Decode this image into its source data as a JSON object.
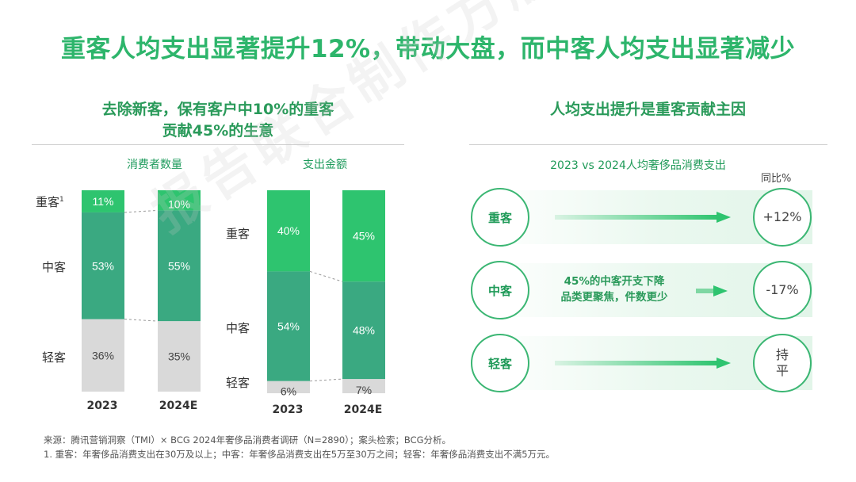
{
  "title": "重客人均支出显著提升12%，带动大盘，而中客人均支出显著减少",
  "left_section": {
    "heading_line1": "去除新客，保有客户中10%的重客",
    "heading_line2": "贡献45%的生意"
  },
  "right_section": {
    "heading": "人均支出提升是重客贡献主因",
    "comparison_title": "2023 vs 2024人均奢侈品消费支出",
    "yoy_header": "同比%",
    "rows": [
      {
        "segment": "重客",
        "value": "+12%"
      },
      {
        "segment": "中客",
        "value": "-17%",
        "note_line1": "45%的中客开支下降",
        "note_line2": "品类更聚焦，件数更少"
      },
      {
        "segment": "轻客",
        "value_line1": "持",
        "value_line2": "平"
      }
    ]
  },
  "chart_data": [
    {
      "type": "bar",
      "stacked": true,
      "normalized": true,
      "title": "消费者数量",
      "categories": [
        "2023",
        "2024E"
      ],
      "series": [
        {
          "name": "轻客",
          "values": [
            36,
            35
          ],
          "color": "#d9d9d9"
        },
        {
          "name": "中客",
          "values": [
            53,
            55
          ],
          "color": "#3aa981"
        },
        {
          "name": "重客",
          "values": [
            11,
            10
          ],
          "color": "#2ec46f"
        }
      ],
      "labels": [
        [
          "36%",
          "35%"
        ],
        [
          "53%",
          "55%"
        ],
        [
          "11%",
          "10%"
        ]
      ],
      "row_labels": [
        "重客",
        "中客",
        "轻客"
      ],
      "row_label_sup": "1"
    },
    {
      "type": "bar",
      "stacked": true,
      "normalized": true,
      "title": "支出金额",
      "categories": [
        "2023",
        "2024E"
      ],
      "series": [
        {
          "name": "轻客",
          "values": [
            6,
            7
          ],
          "color": "#d9d9d9"
        },
        {
          "name": "中客",
          "values": [
            54,
            48
          ],
          "color": "#3aa981"
        },
        {
          "name": "重客",
          "values": [
            40,
            45
          ],
          "color": "#2ec46f"
        }
      ],
      "labels": [
        [
          "6%",
          "7%"
        ],
        [
          "54%",
          "48%"
        ],
        [
          "40%",
          "45%"
        ]
      ],
      "row_labels": [
        "重客",
        "中客",
        "轻客"
      ]
    }
  ],
  "footnotes": {
    "source": "来源：腾讯营销洞察（TMI）× BCG 2024年奢侈品消费者调研（N=2890）；案头检索；BCG分析。",
    "note1": "1. 重客：年奢侈品消费支出在30万及以上；中客：年奢侈品消费支出在5万至30万之间；轻客：年奢侈品消费支出不满5万元。"
  },
  "watermark": "报告联合制作方版权所有",
  "colors": {
    "accent": "#2db56b",
    "heavy": "#2ec46f",
    "medium": "#3aa981",
    "light": "#d9d9d9"
  }
}
